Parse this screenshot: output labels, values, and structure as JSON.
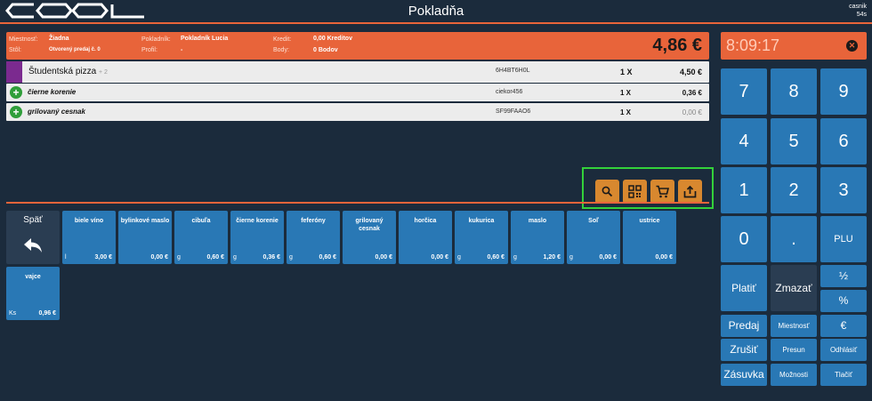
{
  "header": {
    "title": "Pokladňa",
    "user_name": "casnik",
    "user_timer": "54s"
  },
  "info": {
    "room_label": "Miestnosť:",
    "room_value": "Žiadna",
    "table_label": "Stôl:",
    "table_value": "Otvorený predaj č. 0",
    "cashier_label": "Pokladník:",
    "cashier_value": "Pokladník Lucia",
    "profile_label": "Profil:",
    "profile_value": "-",
    "credit_label": "Kredit:",
    "credit_value": "0,00 Kreditov",
    "points_label": "Body:",
    "points_value": "0 Bodov",
    "total": "4,86 €"
  },
  "order": [
    {
      "name": "Študentská pizza",
      "extra": "+ 2",
      "code": "6H4BT6H0L",
      "qty": "1 X",
      "price": "4,50 €"
    },
    {
      "name": "čierne korenie",
      "code": "ciekor456",
      "qty": "1 X",
      "price": "0,36 €"
    },
    {
      "name": "grilovaný cesnak",
      "code": "SF99FAAO6",
      "qty": "1 X",
      "price": "0,00 €"
    }
  ],
  "back": {
    "label": "Späť"
  },
  "products": [
    {
      "name": "biele víno",
      "unit": "l",
      "price": "3,00 €"
    },
    {
      "name": "bylinkové maslo",
      "unit": "",
      "price": "0,00 €"
    },
    {
      "name": "cibuľa",
      "unit": "g",
      "price": "0,60 €"
    },
    {
      "name": "čierne korenie",
      "unit": "g",
      "price": "0,36 €"
    },
    {
      "name": "feferóny",
      "unit": "g",
      "price": "0,60 €"
    },
    {
      "name": "grilovaný cesnak",
      "unit": "",
      "price": "0,00 €"
    },
    {
      "name": "horčica",
      "unit": "",
      "price": "0,00 €"
    },
    {
      "name": "kukurica",
      "unit": "g",
      "price": "0,60 €"
    },
    {
      "name": "maslo",
      "unit": "g",
      "price": "1,20 €"
    },
    {
      "name": "Soľ",
      "unit": "g",
      "price": "0,00 €"
    },
    {
      "name": "ustrice",
      "unit": "",
      "price": "0,00 €"
    },
    {
      "name": "vajce",
      "unit": "Ks",
      "price": "0,96 €"
    }
  ],
  "clock": {
    "time": "8:09:17"
  },
  "keys": {
    "k7": "7",
    "k8": "8",
    "k9": "9",
    "k4": "4",
    "k5": "5",
    "k6": "6",
    "k1": "1",
    "k2": "2",
    "k3": "3",
    "k0": "0",
    "dot": ".",
    "plu": "PLU",
    "pay": "Platiť",
    "delete": "Zmazať",
    "half": "½",
    "percent": "%",
    "sale": "Predaj",
    "room": "Miestnosť",
    "euro": "€",
    "cancel": "Zrušiť",
    "move": "Presun",
    "logout": "Odhlásiť",
    "drawer": "Zásuvka",
    "options": "Možnosti",
    "print": "Tlačiť"
  },
  "icons": {
    "search": "search-icon",
    "barcode": "barcode-icon",
    "cart": "cart-icon",
    "export": "export-icon"
  }
}
